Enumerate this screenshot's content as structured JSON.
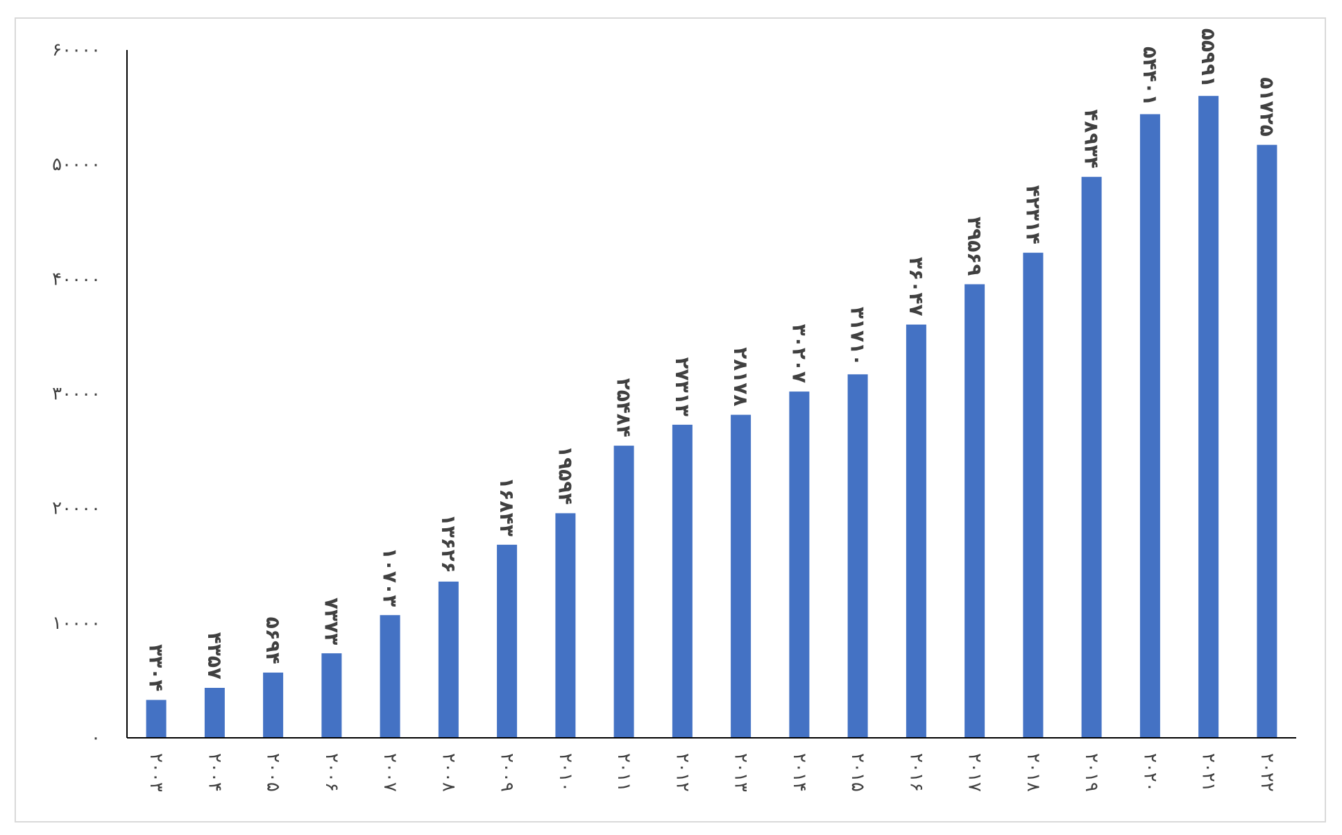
{
  "chart_data": {
    "type": "bar",
    "title": "",
    "xlabel": "",
    "ylabel": "",
    "ylim": [
      0,
      60000
    ],
    "grid": false,
    "legend": "none",
    "bar_color": "#4472C4",
    "axis_color": "#000000",
    "label_color": "#404040",
    "frame_color": "#d9d9d9",
    "y_ticks": [
      {
        "value": 0,
        "label": "۰"
      },
      {
        "value": 10000,
        "label": "۱۰۰۰۰"
      },
      {
        "value": 20000,
        "label": "۲۰۰۰۰"
      },
      {
        "value": 30000,
        "label": "۳۰۰۰۰"
      },
      {
        "value": 40000,
        "label": "۴۰۰۰۰"
      },
      {
        "value": 50000,
        "label": "۵۰۰۰۰"
      },
      {
        "value": 60000,
        "label": "۶۰۰۰۰"
      }
    ],
    "categories": [
      "۲۰۰۳",
      "۲۰۰۴",
      "۲۰۰۵",
      "۲۰۰۶",
      "۲۰۰۷",
      "۲۰۰۸",
      "۲۰۰۹",
      "۲۰۱۰",
      "۲۰۱۱",
      "۲۰۱۲",
      "۲۰۱۳",
      "۲۰۱۴",
      "۲۰۱۵",
      "۲۰۱۶",
      "۲۰۱۷",
      "۲۰۱۸",
      "۲۰۱۹",
      "۲۰۲۰",
      "۲۰۲۱",
      "۲۰۲۲"
    ],
    "values": [
      3304,
      4357,
      5694,
      7373,
      10703,
      13626,
      16843,
      19594,
      25484,
      27313,
      28178,
      30207,
      31710,
      36047,
      39569,
      42314,
      48934,
      54401,
      55991,
      51725
    ],
    "data_labels": [
      "۳۳۰۴",
      "۴۳۵۷",
      "۵۶۹۴",
      "۷۳۷۳",
      "۱۰۷۰۳",
      "۱۳۶۲۶",
      "۱۶۸۴۳",
      "۱۹۵۹۴",
      "۲۵۴۸۴",
      "۲۷۳۱۳",
      "۲۸۱۷۸",
      "۳۰۲۰۷",
      "۳۱۷۱۰",
      "۳۶۰۴۷",
      "۳۹۵۶۹",
      "۴۲۳۱۴",
      "۴۸۹۳۴",
      "۵۴۴۰۱",
      "۵۵۹۹۱",
      "۵۱۷۲۵"
    ]
  }
}
